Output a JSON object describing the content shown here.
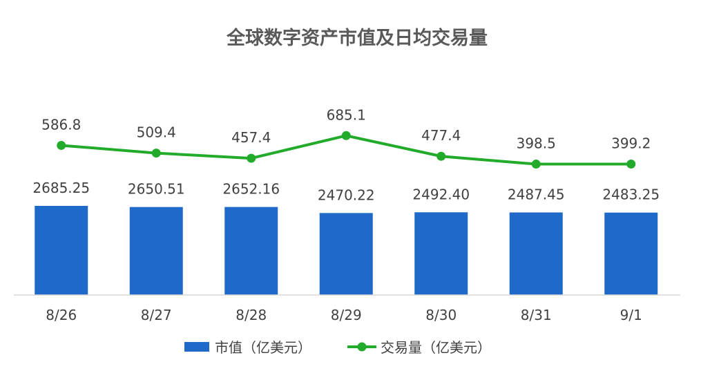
{
  "chart_data": {
    "type": "bar",
    "title": "全球数字资产市值及日均交易量",
    "categories": [
      "8/26",
      "8/27",
      "8/28",
      "8/29",
      "8/30",
      "8/31",
      "9/1"
    ],
    "series": [
      {
        "name": "市值（亿美元）",
        "type": "bar",
        "color": "#1f6ac9",
        "values": [
          2685.25,
          2650.51,
          2652.16,
          2470.22,
          2492.4,
          2487.45,
          2483.25
        ],
        "labels": [
          "2685.25",
          "2650.51",
          "2652.16",
          "2470.22",
          "2492.40",
          "2487.45",
          "2483.25"
        ]
      },
      {
        "name": "交易量（亿美元）",
        "type": "line",
        "color": "#22ab2b",
        "values": [
          586.8,
          509.4,
          457.4,
          685.1,
          477.4,
          398.5,
          399.2
        ],
        "labels": [
          "586.8",
          "509.4",
          "457.4",
          "685.1",
          "477.4",
          "398.5",
          "399.2"
        ]
      }
    ],
    "legend": "bottom",
    "grid": false
  }
}
